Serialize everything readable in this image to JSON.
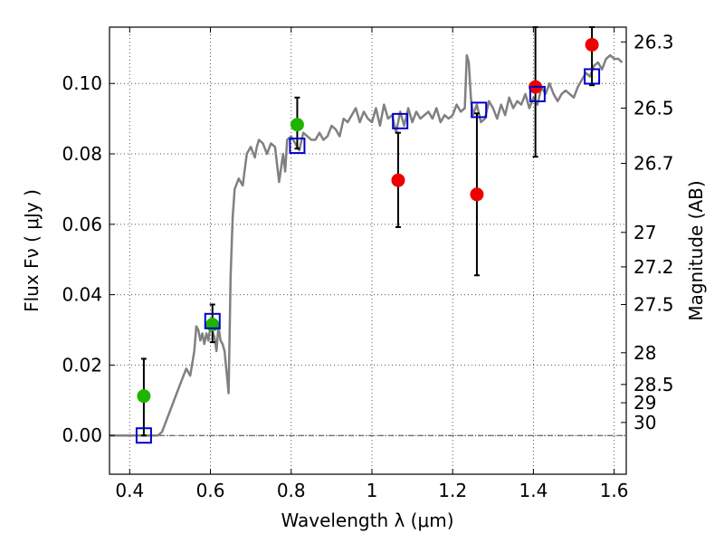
{
  "chart_data": {
    "type": "scatter",
    "xlabel": "Wavelength  λ (μm)",
    "ylabel": "Flux  Fν  ( μJy )",
    "ylabel_right": "Magnitude (AB)",
    "xlim": [
      0.35,
      1.63
    ],
    "ylim": [
      -0.011,
      0.116
    ],
    "grid": true,
    "x_ticks": [
      {
        "value": 0.4,
        "label": "0.4"
      },
      {
        "value": 0.6,
        "label": "0.6"
      },
      {
        "value": 0.8,
        "label": "0.8"
      },
      {
        "value": 1.0,
        "label": "1"
      },
      {
        "value": 1.2,
        "label": "1.2"
      },
      {
        "value": 1.4,
        "label": "1.4"
      },
      {
        "value": 1.6,
        "label": "1.6"
      }
    ],
    "y_ticks": [
      {
        "value": 0.0,
        "label": "0.00"
      },
      {
        "value": 0.02,
        "label": "0.02"
      },
      {
        "value": 0.04,
        "label": "0.04"
      },
      {
        "value": 0.06,
        "label": "0.06"
      },
      {
        "value": 0.08,
        "label": "0.08"
      },
      {
        "value": 0.1,
        "label": "0.10"
      }
    ],
    "mag_ticks": [
      {
        "flux": 0.1118,
        "label": "26.3"
      },
      {
        "flux": 0.093,
        "label": "26.5"
      },
      {
        "flux": 0.0773,
        "label": "26.7"
      },
      {
        "flux": 0.0577,
        "label": "27"
      },
      {
        "flux": 0.0479,
        "label": "27.2"
      },
      {
        "flux": 0.0372,
        "label": "27.5"
      },
      {
        "flux": 0.0235,
        "label": "28"
      },
      {
        "flux": 0.0145,
        "label": "28.5"
      },
      {
        "flux": 0.0093,
        "label": "29"
      },
      {
        "flux": 0.0037,
        "label": "30"
      }
    ],
    "colors": {
      "green": "#1eb400",
      "red": "#ee0000",
      "blue": "#0000cc",
      "model": "#808080"
    },
    "zero_line": 0.0,
    "model_sed": {
      "x": [
        0.35,
        0.47,
        0.48,
        0.5,
        0.52,
        0.54,
        0.55,
        0.56,
        0.565,
        0.57,
        0.575,
        0.58,
        0.585,
        0.59,
        0.595,
        0.6,
        0.61,
        0.615,
        0.62,
        0.625,
        0.63,
        0.635,
        0.64,
        0.645,
        0.65,
        0.655,
        0.66,
        0.67,
        0.68,
        0.69,
        0.7,
        0.71,
        0.715,
        0.72,
        0.73,
        0.74,
        0.75,
        0.76,
        0.77,
        0.78,
        0.785,
        0.79,
        0.8,
        0.81,
        0.82,
        0.83,
        0.84,
        0.85,
        0.86,
        0.87,
        0.88,
        0.89,
        0.9,
        0.91,
        0.92,
        0.93,
        0.94,
        0.95,
        0.96,
        0.97,
        0.98,
        0.99,
        1.0,
        1.01,
        1.02,
        1.03,
        1.04,
        1.05,
        1.06,
        1.07,
        1.08,
        1.09,
        1.1,
        1.11,
        1.12,
        1.13,
        1.14,
        1.15,
        1.16,
        1.17,
        1.18,
        1.19,
        1.2,
        1.21,
        1.22,
        1.23,
        1.235,
        1.24,
        1.245,
        1.25,
        1.26,
        1.27,
        1.28,
        1.29,
        1.3,
        1.31,
        1.32,
        1.33,
        1.34,
        1.35,
        1.36,
        1.37,
        1.38,
        1.39,
        1.4,
        1.41,
        1.42,
        1.43,
        1.44,
        1.45,
        1.46,
        1.47,
        1.48,
        1.49,
        1.5,
        1.51,
        1.52,
        1.53,
        1.54,
        1.55,
        1.56,
        1.57,
        1.58,
        1.59,
        1.6,
        1.61,
        1.62
      ],
      "y": [
        0.0,
        0.0,
        0.001,
        0.007,
        0.013,
        0.019,
        0.017,
        0.024,
        0.031,
        0.03,
        0.027,
        0.029,
        0.026,
        0.029,
        0.027,
        0.031,
        0.028,
        0.024,
        0.031,
        0.027,
        0.026,
        0.024,
        0.018,
        0.012,
        0.045,
        0.062,
        0.07,
        0.073,
        0.071,
        0.08,
        0.082,
        0.079,
        0.082,
        0.084,
        0.083,
        0.08,
        0.083,
        0.082,
        0.072,
        0.08,
        0.075,
        0.084,
        0.085,
        0.083,
        0.081,
        0.086,
        0.085,
        0.084,
        0.084,
        0.086,
        0.084,
        0.085,
        0.088,
        0.087,
        0.085,
        0.09,
        0.089,
        0.091,
        0.093,
        0.089,
        0.092,
        0.09,
        0.089,
        0.093,
        0.088,
        0.094,
        0.09,
        0.091,
        0.086,
        0.092,
        0.088,
        0.093,
        0.089,
        0.092,
        0.09,
        0.091,
        0.092,
        0.09,
        0.093,
        0.089,
        0.091,
        0.09,
        0.091,
        0.094,
        0.092,
        0.093,
        0.108,
        0.106,
        0.096,
        0.091,
        0.094,
        0.089,
        0.09,
        0.095,
        0.093,
        0.09,
        0.094,
        0.091,
        0.096,
        0.093,
        0.095,
        0.094,
        0.097,
        0.093,
        0.096,
        0.094,
        0.099,
        0.097,
        0.1,
        0.097,
        0.095,
        0.097,
        0.098,
        0.097,
        0.096,
        0.099,
        0.101,
        0.103,
        0.102,
        0.105,
        0.106,
        0.104,
        0.107,
        0.108,
        0.107,
        0.107,
        0.106
      ]
    },
    "series": [
      {
        "marker": "circle-green",
        "color": "green",
        "x": [
          0.435,
          0.605,
          0.815
        ],
        "y": [
          0.0112,
          0.0315,
          0.0883
        ],
        "yerr_low": [
          0.0,
          0.0265,
          0.0815
        ],
        "yerr_high": [
          0.0218,
          0.0372,
          0.096
        ]
      },
      {
        "marker": "circle-red",
        "color": "red",
        "x": [
          1.065,
          1.26,
          1.405,
          1.545
        ],
        "y": [
          0.0725,
          0.0685,
          0.099,
          0.111
        ],
        "yerr_low": [
          0.0592,
          0.0455,
          0.0792,
          0.0995
        ],
        "yerr_high": [
          0.086,
          0.0915,
          0.116,
          0.116
        ]
      },
      {
        "marker": "square-blue",
        "color": "blue",
        "x": [
          0.435,
          0.605,
          0.815,
          1.07,
          1.265,
          1.41,
          1.545
        ],
        "y": [
          0.0,
          0.0325,
          0.0823,
          0.0893,
          0.0925,
          0.097,
          0.102
        ]
      }
    ]
  }
}
